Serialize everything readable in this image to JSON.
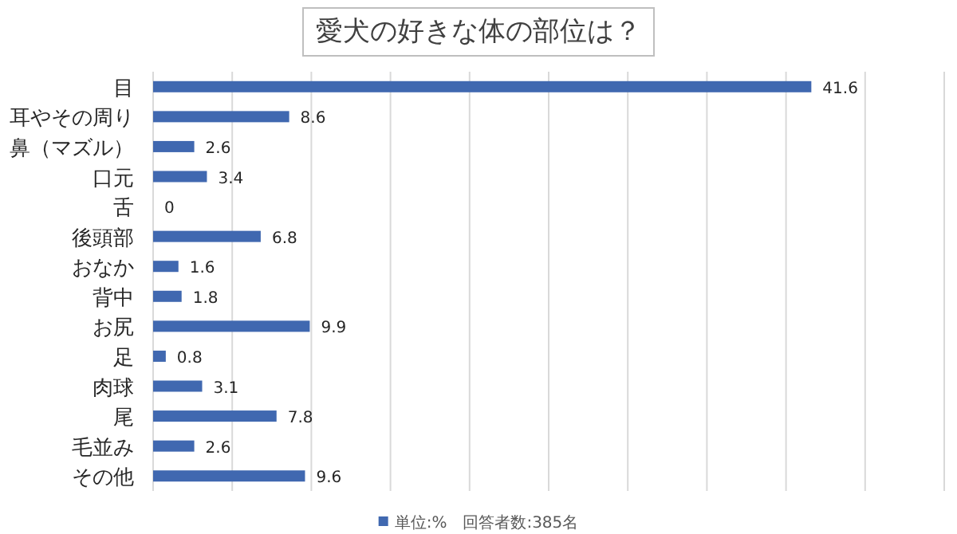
{
  "chart_data": {
    "type": "bar",
    "orientation": "horizontal",
    "title": "愛犬の好きな体の部位は？",
    "categories": [
      "目",
      "耳やその周り",
      "鼻（マズル）",
      "口元",
      "舌",
      "後頭部",
      "おなか",
      "背中",
      "お尻",
      "足",
      "肉球",
      "尾",
      "毛並み",
      "その他"
    ],
    "series": [
      {
        "name": "単位:%　回答者数:385名",
        "color": "#4068b0",
        "values": [
          41.6,
          8.6,
          2.6,
          3.4,
          0,
          6.8,
          1.6,
          1.8,
          9.9,
          0.8,
          3.1,
          7.8,
          2.6,
          9.6
        ]
      }
    ],
    "xlim": [
      0,
      50
    ],
    "xticks": [
      {
        "value": 0,
        "label": null
      },
      {
        "value": 5,
        "label": null
      },
      {
        "value": 10,
        "label": null
      },
      {
        "value": 15,
        "label": null
      },
      {
        "value": 20,
        "label": null
      },
      {
        "value": 25,
        "label": null
      },
      {
        "value": 30,
        "label": null
      },
      {
        "value": 35,
        "label": null
      },
      {
        "value": 40,
        "label": null
      },
      {
        "value": 45,
        "label": null
      },
      {
        "value": 50,
        "label": null
      }
    ],
    "grid": "x",
    "data_labels": true,
    "legend": "bottom",
    "tick_labels": "y"
  }
}
